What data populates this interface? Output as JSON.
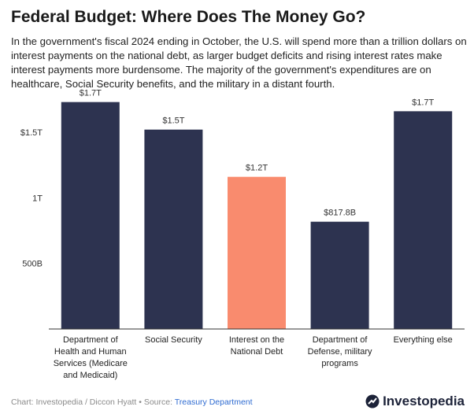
{
  "header": {
    "title": "Federal Budget: Where Does The Money Go?",
    "subtitle": "In the government's fiscal 2024 ending in October, the U.S. will spend more than a trillion dollars on interest payments on the national debt, as larger budget deficits and rising interest rates make interest payments more burdensome. The majority of the government's expenditures are on healthcare, Social Security benefits, and the military in a distant fourth."
  },
  "chart_data": {
    "type": "bar",
    "categories": [
      "Department of Health and Human Services (Medicare and Medicaid)",
      "Social Security",
      "Interest on the National Debt",
      "Department of Defense, military programs",
      "Everything else"
    ],
    "category_lines": [
      [
        "Department of",
        "Health and Human",
        "Services (Medicare",
        "and Medicaid)"
      ],
      [
        "Social Security"
      ],
      [
        "Interest on the",
        "National Debt"
      ],
      [
        "Department of",
        "Defense, military",
        "programs"
      ],
      [
        "Everything else"
      ]
    ],
    "values": [
      1730,
      1520,
      1160,
      817.8,
      1660
    ],
    "value_unit": "billions of dollars",
    "data_labels": [
      "$1.7T",
      "$1.5T",
      "$1.2T",
      "$817.8B",
      "$1.7T"
    ],
    "bar_colors": [
      "#2d3350",
      "#2d3350",
      "#f98b6e",
      "#2d3350",
      "#2d3350"
    ],
    "yticks": [
      {
        "value": 500,
        "label": "500B"
      },
      {
        "value": 1000,
        "label": "1T"
      },
      {
        "value": 1500,
        "label": "$1.5T"
      }
    ],
    "ylim": [
      0,
      1800
    ],
    "grid": false
  },
  "footer": {
    "credit": "Chart: Investopedia / Diccon Hyatt • Source: ",
    "source": "Treasury Department"
  },
  "brand": {
    "name": "Investopedia",
    "logo_icon": "investopedia-logo-icon"
  }
}
